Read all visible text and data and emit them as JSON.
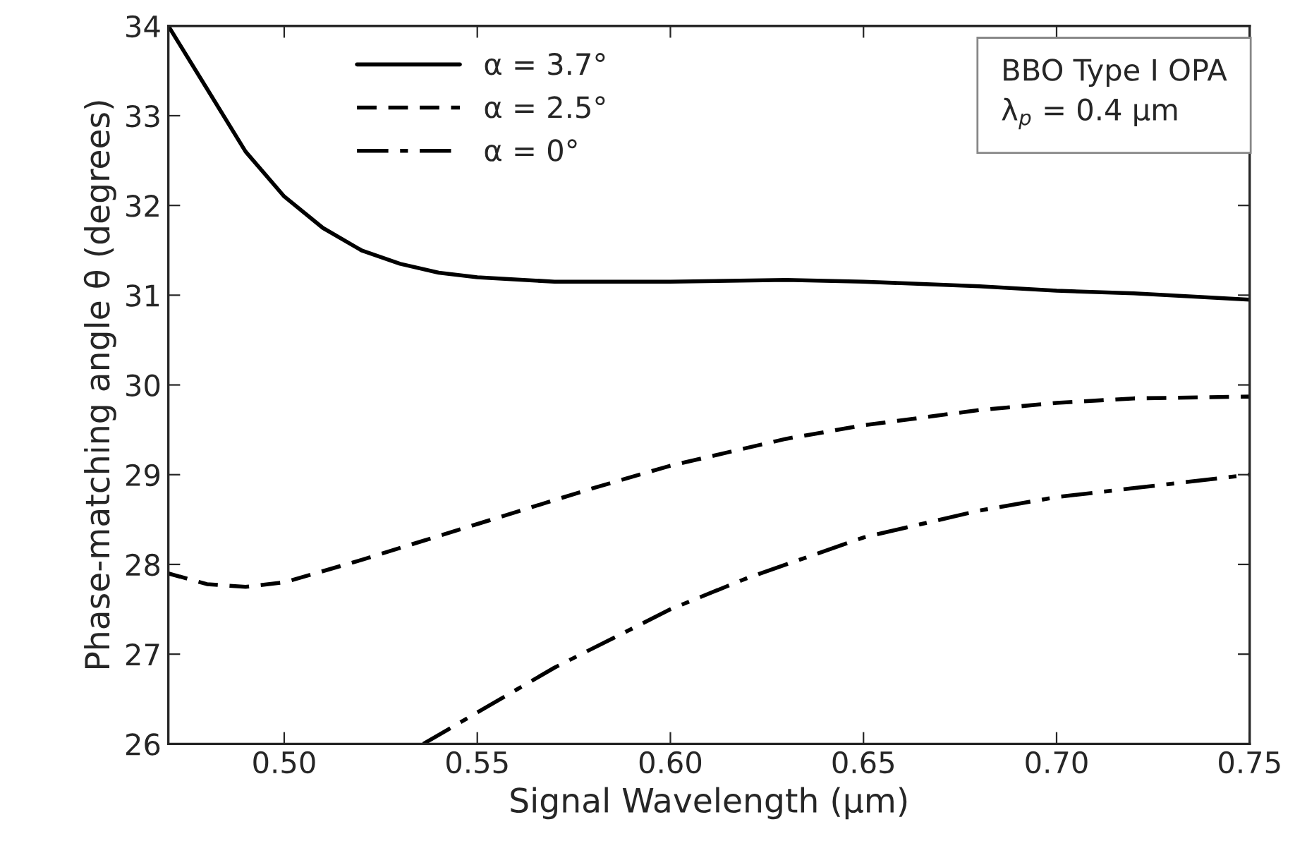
{
  "chart_data": {
    "type": "line",
    "xlabel": "Signal Wavelength (μm)",
    "ylabel": "Phase-matching angle θ (degrees)",
    "xlim": [
      0.47,
      0.75
    ],
    "ylim": [
      26,
      34
    ],
    "xticks": [
      {
        "value": 0.5,
        "label": "0.50"
      },
      {
        "value": 0.55,
        "label": "0.55"
      },
      {
        "value": 0.6,
        "label": "0.60"
      },
      {
        "value": 0.65,
        "label": "0.65"
      },
      {
        "value": 0.7,
        "label": "0.70"
      },
      {
        "value": 0.75,
        "label": "0.75"
      }
    ],
    "yticks": [
      26,
      27,
      28,
      29,
      30,
      31,
      32,
      33,
      34
    ],
    "grid": false,
    "legend": "top left",
    "marker": "none",
    "annotations": [
      "BBO Type I OPA\nλ$_{p}$ = 0.4 μm"
    ],
    "series": [
      {
        "name": "α = 3.7°",
        "color": "#000000",
        "line_style": "solid",
        "x": [
          0.47,
          0.48,
          0.49,
          0.5,
          0.51,
          0.52,
          0.53,
          0.54,
          0.55,
          0.57,
          0.6,
          0.63,
          0.65,
          0.68,
          0.7,
          0.72,
          0.75
        ],
        "values": [
          34.0,
          33.3,
          32.6,
          32.1,
          31.75,
          31.5,
          31.35,
          31.25,
          31.2,
          31.15,
          31.15,
          31.17,
          31.15,
          31.1,
          31.05,
          31.02,
          30.95
        ]
      },
      {
        "name": "α = 2.5°",
        "color": "#000000",
        "line_style": "dashed",
        "x": [
          0.47,
          0.48,
          0.49,
          0.5,
          0.52,
          0.55,
          0.58,
          0.6,
          0.63,
          0.65,
          0.68,
          0.7,
          0.72,
          0.75
        ],
        "values": [
          27.9,
          27.78,
          27.75,
          27.8,
          28.05,
          28.45,
          28.85,
          29.1,
          29.4,
          29.55,
          29.72,
          29.8,
          29.85,
          29.87
        ]
      },
      {
        "name": "α = 0°",
        "color": "#000000",
        "line_style": "dashdot",
        "x": [
          0.536,
          0.55,
          0.57,
          0.6,
          0.62,
          0.65,
          0.68,
          0.7,
          0.72,
          0.75
        ],
        "values": [
          26.0,
          26.35,
          26.85,
          27.5,
          27.85,
          28.3,
          28.6,
          28.75,
          28.85,
          29.0
        ]
      }
    ]
  }
}
